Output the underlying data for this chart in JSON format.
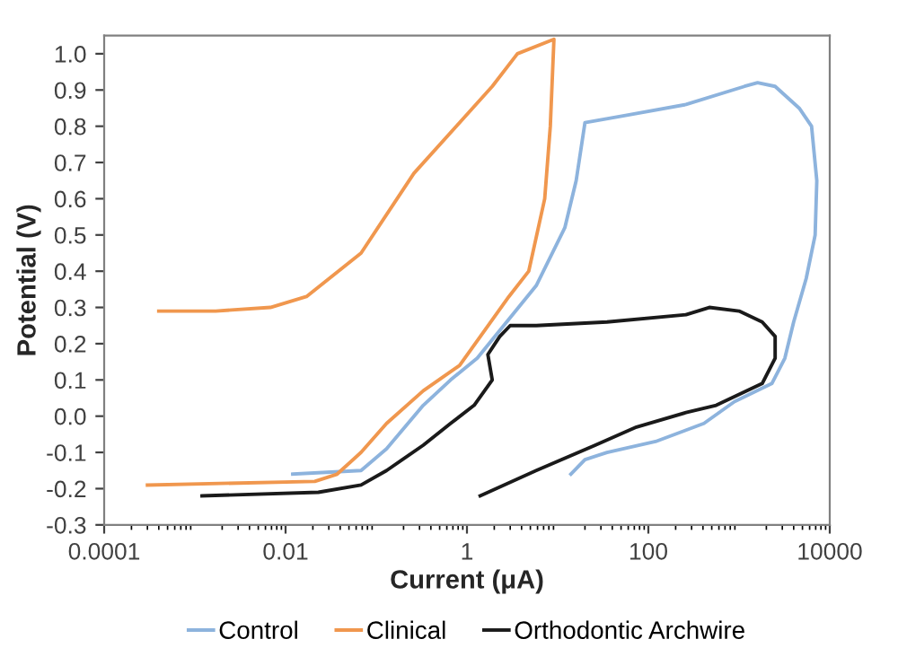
{
  "chart_data": {
    "type": "line",
    "xlabel": "Current (μA)",
    "ylabel": "Potential (V)",
    "log": "x",
    "xlim": [
      0.0001,
      10000
    ],
    "xticks": [
      0.0001,
      0.01,
      1,
      100,
      10000
    ],
    "ylim": [
      -0.3,
      1.05
    ],
    "yticks": [
      -0.3,
      -0.2,
      -0.1,
      {
        "value": 0,
        "label": "0.0"
      },
      0.1,
      0.2,
      0.3,
      0.4,
      0.5,
      0.6,
      0.7,
      0.8,
      0.9,
      {
        "value": 1,
        "label": "1.0"
      }
    ],
    "grid": false,
    "legend": "bottom",
    "marker": "none",
    "line_style": "solid",
    "series": [
      {
        "name": "Control",
        "color": "#8db3dd",
        "x": [
          0.012,
          0.068,
          0.13,
          0.33,
          0.66,
          1.3,
          5.8,
          12,
          16,
          20,
          56,
          260,
          1150,
          1600,
          2500,
          4600,
          6300,
          7200,
          6900,
          5500,
          4000,
          3200,
          2300,
          890,
          410,
          120,
          35,
          20,
          14
        ],
        "values": [
          -0.16,
          -0.15,
          -0.09,
          0.03,
          0.1,
          0.16,
          0.36,
          0.52,
          0.65,
          0.81,
          0.83,
          0.86,
          0.91,
          0.92,
          0.91,
          0.85,
          0.8,
          0.65,
          0.5,
          0.38,
          0.26,
          0.16,
          0.09,
          0.04,
          -0.02,
          -0.07,
          -0.1,
          -0.12,
          -0.16
        ]
      },
      {
        "name": "Clinical",
        "color": "#f0974e",
        "x": [
          0.0003,
          0.021,
          0.037,
          0.068,
          0.13,
          0.33,
          0.83,
          1.5,
          2.9,
          4.8,
          7.2,
          8.3,
          9.1,
          3.6,
          1.9,
          0.26,
          0.068,
          0.017,
          0.0068,
          0.0017,
          0.0004
        ],
        "values": [
          -0.19,
          -0.18,
          -0.16,
          -0.1,
          -0.02,
          0.07,
          0.14,
          0.23,
          0.33,
          0.4,
          0.6,
          0.8,
          1.04,
          1.0,
          0.91,
          0.67,
          0.45,
          0.33,
          0.3,
          0.29,
          0.29
        ]
      },
      {
        "name": "Orthodontic Archwire",
        "color": "#1a1a1a",
        "x": [
          0.0012,
          0.023,
          0.068,
          0.13,
          0.33,
          0.66,
          1.2,
          1.9,
          1.7,
          2.3,
          3.0,
          5.8,
          35,
          260,
          470,
          1000,
          1800,
          2500,
          2500,
          1800,
          560,
          260,
          74,
          26,
          5.8,
          1.4
        ],
        "values": [
          -0.22,
          -0.21,
          -0.19,
          -0.15,
          -0.08,
          -0.02,
          0.03,
          0.1,
          0.17,
          0.22,
          0.25,
          0.25,
          0.26,
          0.28,
          0.3,
          0.29,
          0.26,
          0.22,
          0.16,
          0.09,
          0.03,
          0.01,
          -0.03,
          -0.08,
          -0.15,
          -0.22
        ]
      }
    ]
  }
}
